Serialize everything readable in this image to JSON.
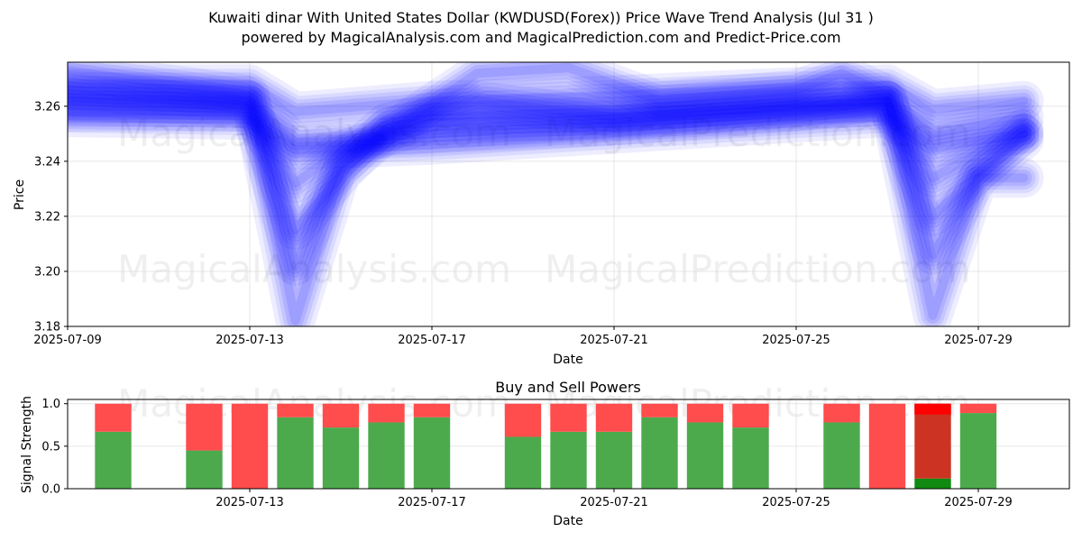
{
  "header": {
    "title_line1": "Kuwaiti dinar With United States Dollar (KWDUSD(Forex)) Price Wave Trend Analysis (Jul 31 )",
    "title_line2": "powered by MagicalAnalysis.com and MagicalPrediction.com and Predict-Price.com"
  },
  "watermarks": [
    "MagicalAnalysis.com",
    "MagicalPrediction.com"
  ],
  "colors": {
    "wave": "#0000ff",
    "buy": "#4caa4c",
    "sell": "#ff4c4c",
    "buy_strong": "#108a10",
    "sell_strong": "#ff0000",
    "mixed": "#cc3322"
  },
  "chart_data": [
    {
      "type": "line",
      "title": "",
      "xlabel": "Date",
      "ylabel": "Price",
      "xlim": [
        "2025-07-09",
        "2025-07-31"
      ],
      "ylim": [
        3.18,
        3.276
      ],
      "x_ticks": [
        "2025-07-09",
        "2025-07-13",
        "2025-07-17",
        "2025-07-21",
        "2025-07-25",
        "2025-07-29"
      ],
      "y_ticks": [
        3.18,
        3.2,
        3.22,
        3.24,
        3.26
      ],
      "grid": true,
      "series": [
        {
          "values": [
            [
              "2025-07-09",
              3.263
            ],
            [
              "2025-07-13",
              3.262
            ],
            [
              "2025-07-14",
              3.247
            ],
            [
              "2025-07-17",
              3.25
            ],
            [
              "2025-07-21",
              3.253
            ],
            [
              "2025-07-25",
              3.258
            ],
            [
              "2025-07-27",
              3.262
            ],
            [
              "2025-07-28",
              3.25
            ],
            [
              "2025-07-30",
              3.256
            ]
          ]
        },
        {
          "values": [
            [
              "2025-07-09",
              3.268
            ],
            [
              "2025-07-13",
              3.268
            ],
            [
              "2025-07-14",
              3.258
            ],
            [
              "2025-07-17",
              3.262
            ],
            [
              "2025-07-21",
              3.264
            ],
            [
              "2025-07-25",
              3.267
            ],
            [
              "2025-07-27",
              3.268
            ],
            [
              "2025-07-28",
              3.259
            ],
            [
              "2025-07-30",
              3.262
            ]
          ]
        },
        {
          "values": [
            [
              "2025-07-09",
              3.256
            ],
            [
              "2025-07-13",
              3.255
            ],
            [
              "2025-07-14",
              3.244
            ],
            [
              "2025-07-17",
              3.246
            ],
            [
              "2025-07-21",
              3.25
            ],
            [
              "2025-07-25",
              3.254
            ],
            [
              "2025-07-27",
              3.256
            ],
            [
              "2025-07-28",
              3.245
            ],
            [
              "2025-07-30",
              3.25
            ]
          ]
        },
        {
          "values": [
            [
              "2025-07-09",
              3.266
            ],
            [
              "2025-07-13",
              3.262
            ],
            [
              "2025-07-14",
              3.215
            ],
            [
              "2025-07-15",
              3.235
            ],
            [
              "2025-07-16",
              3.252
            ],
            [
              "2025-07-17",
              3.256
            ],
            [
              "2025-07-21",
              3.258
            ],
            [
              "2025-07-25",
              3.261
            ],
            [
              "2025-07-27",
              3.262
            ],
            [
              "2025-07-28",
              3.22
            ],
            [
              "2025-07-29",
              3.236
            ],
            [
              "2025-07-30",
              3.25
            ]
          ]
        },
        {
          "values": [
            [
              "2025-07-09",
              3.262
            ],
            [
              "2025-07-13",
              3.26
            ],
            [
              "2025-07-14",
              3.202
            ],
            [
              "2025-07-15",
              3.24
            ],
            [
              "2025-07-16",
              3.254
            ],
            [
              "2025-07-18",
              3.262
            ],
            [
              "2025-07-21",
              3.256
            ],
            [
              "2025-07-25",
              3.26
            ],
            [
              "2025-07-27",
              3.262
            ],
            [
              "2025-07-28",
              3.206
            ],
            [
              "2025-07-29",
              3.234
            ],
            [
              "2025-07-30",
              3.248
            ]
          ]
        },
        {
          "values": [
            [
              "2025-07-09",
              3.273
            ],
            [
              "2025-07-13",
              3.264
            ],
            [
              "2025-07-14",
              3.182
            ],
            [
              "2025-07-15",
              3.236
            ],
            [
              "2025-07-16",
              3.25
            ],
            [
              "2025-07-18",
              3.272
            ],
            [
              "2025-07-20",
              3.274
            ],
            [
              "2025-07-22",
              3.262
            ],
            [
              "2025-07-25",
              3.266
            ],
            [
              "2025-07-26",
              3.272
            ],
            [
              "2025-07-27",
              3.264
            ],
            [
              "2025-07-28",
              3.184
            ],
            [
              "2025-07-29",
              3.234
            ],
            [
              "2025-07-30",
              3.234
            ]
          ]
        },
        {
          "values": [
            [
              "2025-07-09",
              3.258
            ],
            [
              "2025-07-13",
              3.258
            ],
            [
              "2025-07-14",
              3.232
            ],
            [
              "2025-07-15",
              3.244
            ],
            [
              "2025-07-17",
              3.254
            ],
            [
              "2025-07-21",
              3.255
            ],
            [
              "2025-07-25",
              3.259
            ],
            [
              "2025-07-27",
              3.26
            ],
            [
              "2025-07-28",
              3.234
            ],
            [
              "2025-07-30",
              3.252
            ]
          ]
        }
      ]
    },
    {
      "type": "bar",
      "stacked": true,
      "title": "Buy and Sell Powers",
      "xlabel": "Date",
      "ylabel": "Signal Strength",
      "xlim": [
        "2025-07-09",
        "2025-07-31"
      ],
      "ylim": [
        0,
        1.05
      ],
      "x_ticks": [
        "2025-07-13",
        "2025-07-17",
        "2025-07-21",
        "2025-07-25",
        "2025-07-29"
      ],
      "y_ticks": [
        0.0,
        0.5,
        1.0
      ],
      "grid": true,
      "categories": [
        "2025-07-10",
        "2025-07-12",
        "2025-07-13",
        "2025-07-14",
        "2025-07-15",
        "2025-07-16",
        "2025-07-17",
        "2025-07-19",
        "2025-07-20",
        "2025-07-21",
        "2025-07-22",
        "2025-07-23",
        "2025-07-24",
        "2025-07-26",
        "2025-07-27",
        "2025-07-28",
        "2025-07-29"
      ],
      "series": [
        {
          "name": "Buy",
          "values": [
            0.67,
            0.45,
            0.0,
            0.84,
            0.72,
            0.78,
            0.84,
            0.61,
            0.67,
            0.67,
            0.84,
            0.78,
            0.72,
            0.78,
            0.0,
            0.12,
            0.89
          ]
        },
        {
          "name": "Sell",
          "values": [
            0.33,
            0.55,
            1.0,
            0.16,
            0.28,
            0.22,
            0.16,
            0.39,
            0.33,
            0.33,
            0.16,
            0.22,
            0.28,
            0.22,
            1.0,
            0.88,
            0.11
          ]
        }
      ]
    }
  ]
}
